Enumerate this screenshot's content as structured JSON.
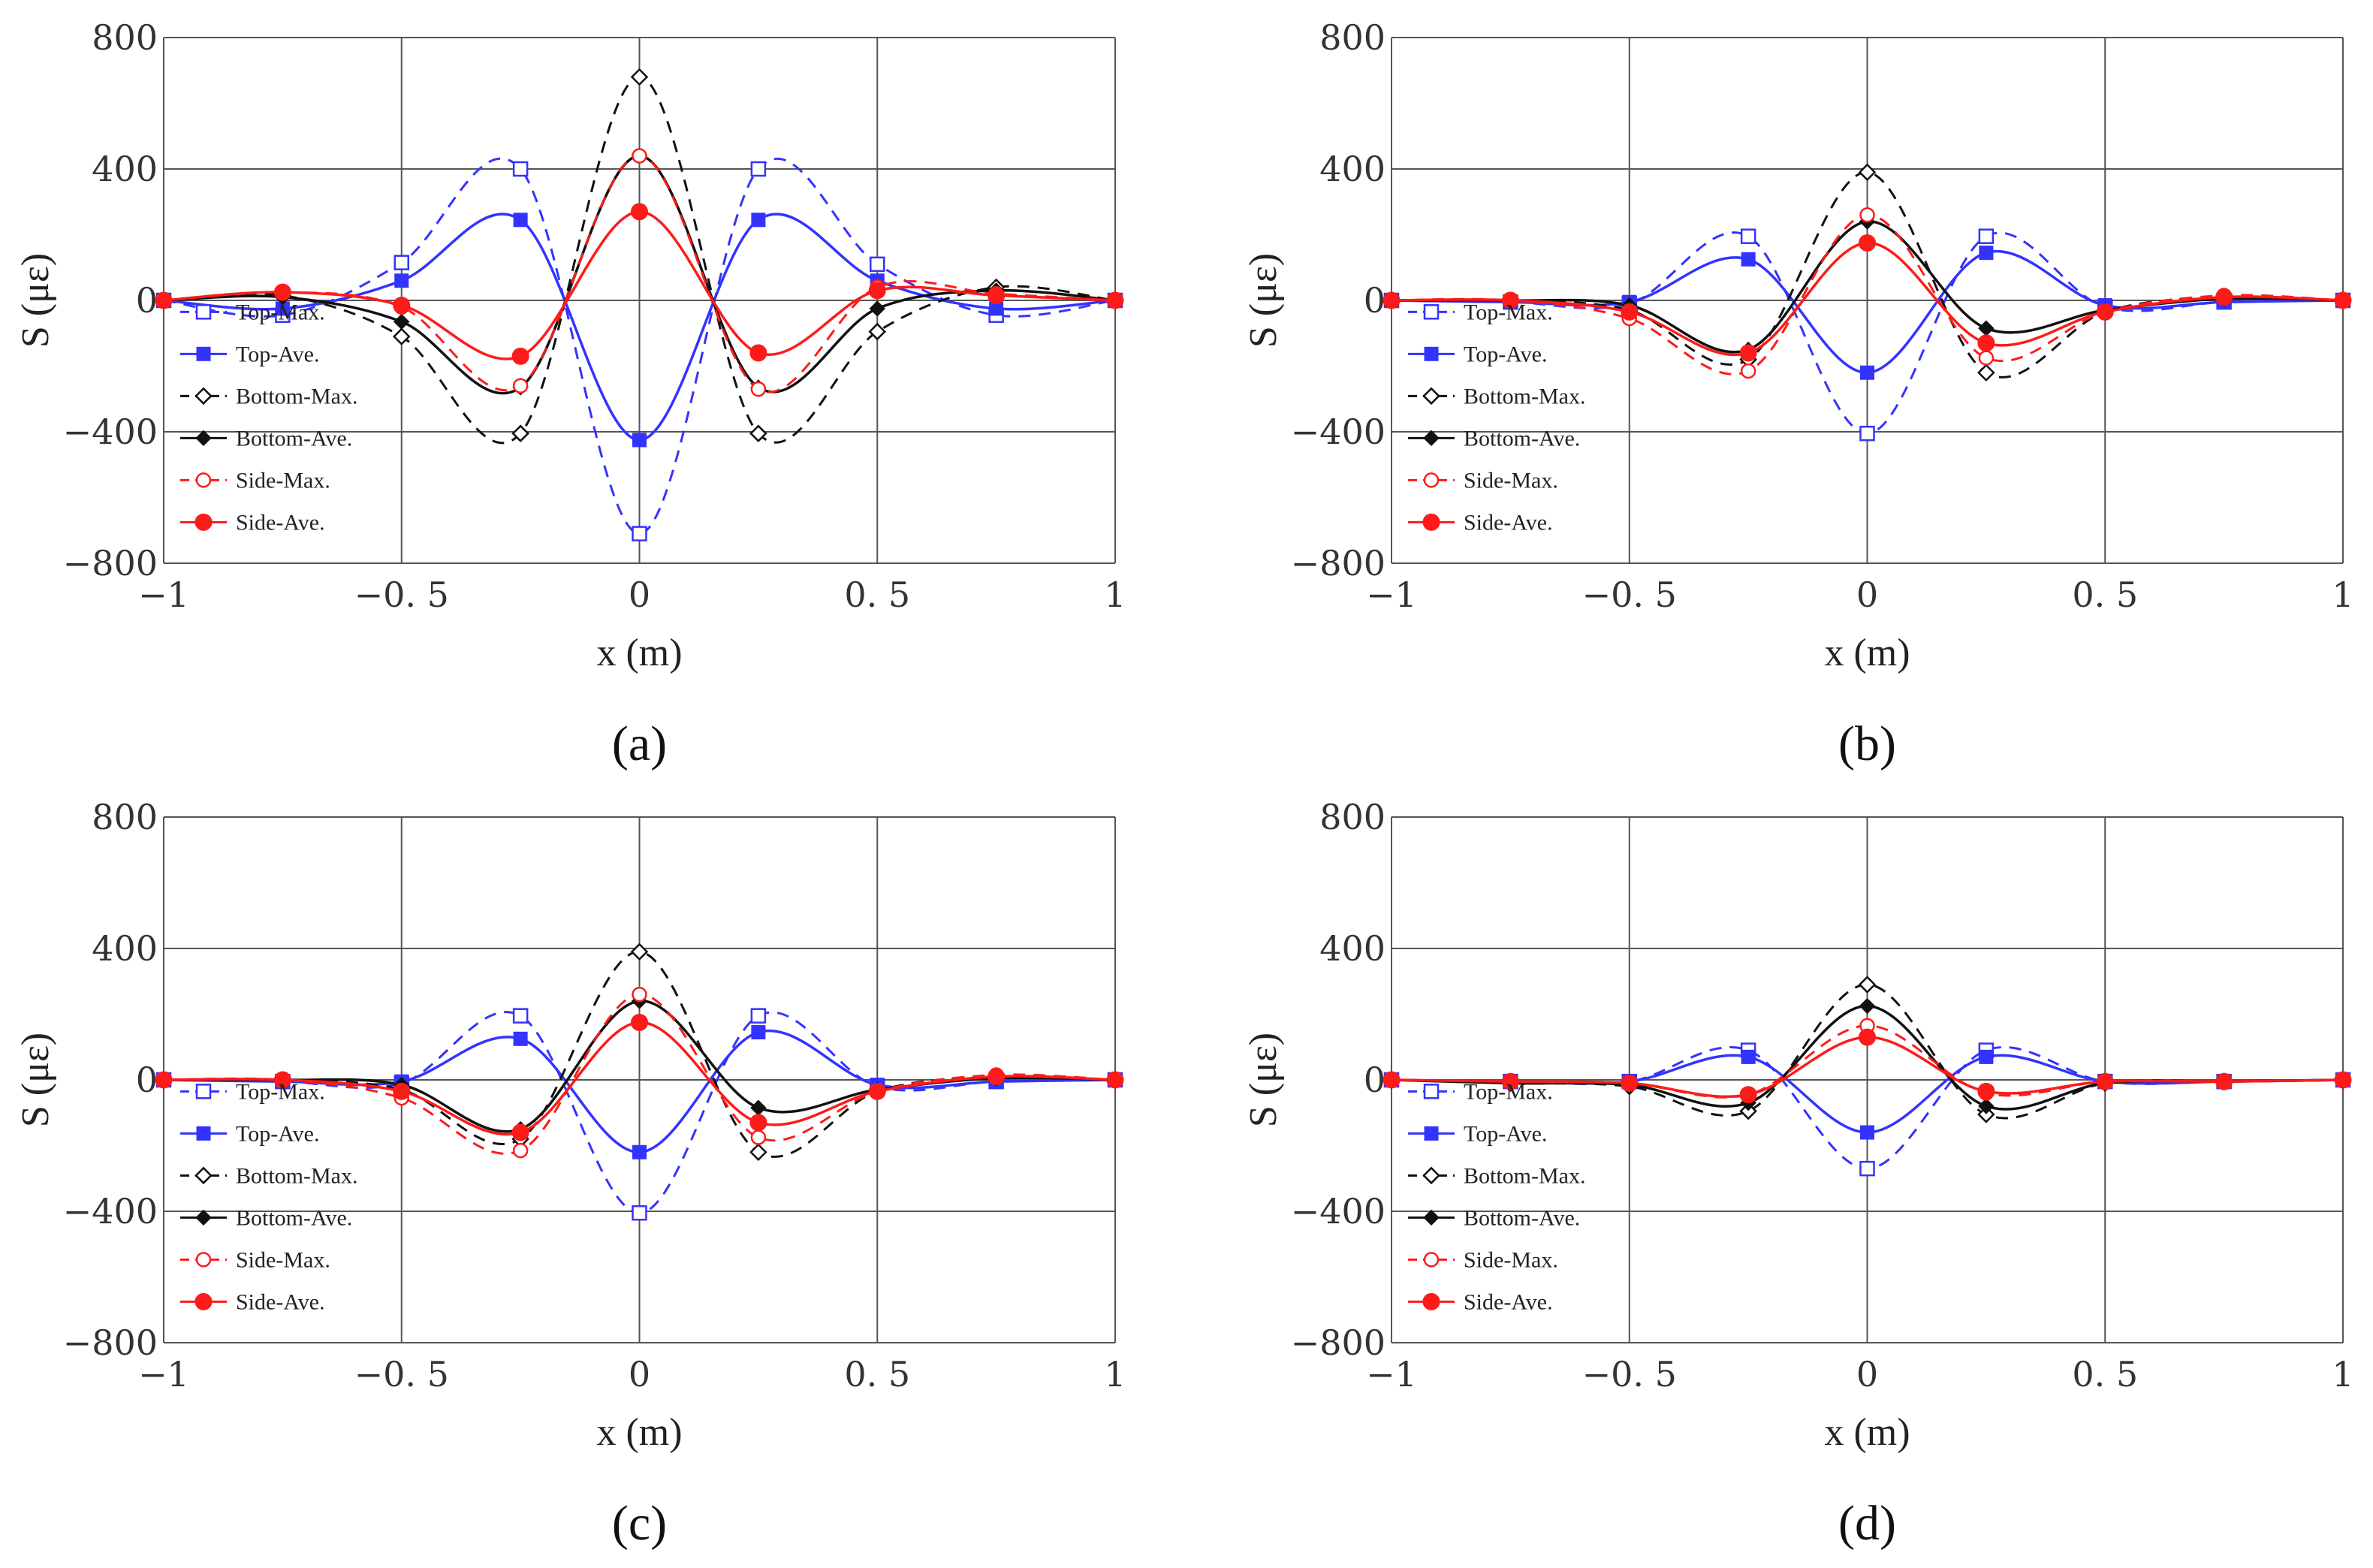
{
  "figure": {
    "colors": {
      "blue": "#3333ff",
      "black": "#111111",
      "red": "#ff1a1a",
      "grid": "#555555"
    }
  },
  "chart_data": [
    {
      "panel": "(a)",
      "type": "line",
      "xlabel": "x (m)",
      "ylabel": "S (με)",
      "xlim": [
        -1,
        1
      ],
      "ylim": [
        -800,
        800
      ],
      "xticks": [
        "−1",
        "−0. 5",
        "0",
        "0. 5",
        "1"
      ],
      "yticks": [
        "800",
        "400",
        "0",
        "−400",
        "−800"
      ],
      "legend_position": "left",
      "x": [
        -1,
        -0.75,
        -0.5,
        -0.25,
        0,
        0.25,
        0.5,
        0.75,
        1
      ],
      "series": [
        {
          "name": "Top-Max.",
          "color": "#3333ff",
          "dash": true,
          "marker": "open-square",
          "values": [
            0,
            -45,
            115,
            400,
            -710,
            400,
            110,
            -45,
            0
          ]
        },
        {
          "name": "Top-Ave.",
          "color": "#3333ff",
          "dash": false,
          "marker": "filled-square",
          "values": [
            0,
            -25,
            60,
            245,
            -425,
            245,
            60,
            -25,
            0
          ]
        },
        {
          "name": "Bottom-Max.",
          "color": "#111111",
          "dash": true,
          "marker": "open-diamond",
          "values": [
            0,
            15,
            -110,
            -405,
            680,
            -405,
            -95,
            40,
            0
          ]
        },
        {
          "name": "Bottom-Ave.",
          "color": "#111111",
          "dash": false,
          "marker": "filled-diamond",
          "values": [
            0,
            10,
            -65,
            -265,
            440,
            -265,
            -25,
            30,
            0
          ]
        },
        {
          "name": "Side-Max.",
          "color": "#ff1a1a",
          "dash": true,
          "marker": "open-circle",
          "values": [
            0,
            25,
            -20,
            -260,
            440,
            -270,
            40,
            20,
            0
          ]
        },
        {
          "name": "Side-Ave.",
          "color": "#ff1a1a",
          "dash": false,
          "marker": "filled-circle",
          "values": [
            0,
            25,
            -15,
            -170,
            270,
            -160,
            30,
            15,
            0
          ]
        }
      ]
    },
    {
      "panel": "(b)",
      "type": "line",
      "xlabel": "x (m)",
      "ylabel": "S (με)",
      "xlim": [
        -1,
        1
      ],
      "ylim": [
        -800,
        800
      ],
      "xticks": [
        "−1",
        "−0. 5",
        "0",
        "0. 5",
        "1"
      ],
      "yticks": [
        "800",
        "400",
        "0",
        "−400",
        "−800"
      ],
      "legend_position": "left",
      "x": [
        -1,
        -0.75,
        -0.5,
        -0.25,
        0,
        0.25,
        0.5,
        0.75,
        1
      ],
      "series": [
        {
          "name": "Top-Max.",
          "color": "#3333ff",
          "dash": true,
          "marker": "open-square",
          "values": [
            0,
            -5,
            -10,
            195,
            -405,
            195,
            -20,
            -5,
            0
          ]
        },
        {
          "name": "Top-Ave.",
          "color": "#3333ff",
          "dash": false,
          "marker": "filled-square",
          "values": [
            0,
            -5,
            -5,
            125,
            -220,
            145,
            -15,
            -5,
            0
          ]
        },
        {
          "name": "Bottom-Max.",
          "color": "#111111",
          "dash": true,
          "marker": "open-diamond",
          "values": [
            0,
            0,
            -30,
            -180,
            390,
            -220,
            -35,
            10,
            0
          ]
        },
        {
          "name": "Bottom-Ave.",
          "color": "#111111",
          "dash": false,
          "marker": "filled-diamond",
          "values": [
            0,
            0,
            -15,
            -150,
            240,
            -85,
            -30,
            5,
            0
          ]
        },
        {
          "name": "Side-Max.",
          "color": "#ff1a1a",
          "dash": true,
          "marker": "open-circle",
          "values": [
            0,
            0,
            -55,
            -215,
            260,
            -175,
            -35,
            15,
            0
          ]
        },
        {
          "name": "Side-Ave.",
          "color": "#ff1a1a",
          "dash": false,
          "marker": "filled-circle",
          "values": [
            0,
            0,
            -35,
            -160,
            175,
            -130,
            -35,
            10,
            0
          ]
        }
      ]
    },
    {
      "panel": "(c)",
      "type": "line",
      "xlabel": "x (m)",
      "ylabel": "S (με)",
      "xlim": [
        -1,
        1
      ],
      "ylim": [
        -800,
        800
      ],
      "xticks": [
        "−1",
        "−0. 5",
        "0",
        "0. 5",
        "1"
      ],
      "yticks": [
        "800",
        "400",
        "0",
        "−400",
        "−800"
      ],
      "legend_position": "left",
      "x": [
        -1,
        -0.75,
        -0.5,
        -0.25,
        0,
        0.25,
        0.5,
        0.75,
        1
      ],
      "series": [
        {
          "name": "Top-Max.",
          "color": "#3333ff",
          "dash": true,
          "marker": "open-square",
          "values": [
            0,
            -5,
            -10,
            195,
            -405,
            195,
            -20,
            -5,
            0
          ]
        },
        {
          "name": "Top-Ave.",
          "color": "#3333ff",
          "dash": false,
          "marker": "filled-square",
          "values": [
            0,
            -5,
            -5,
            125,
            -220,
            145,
            -15,
            -5,
            0
          ]
        },
        {
          "name": "Bottom-Max.",
          "color": "#111111",
          "dash": true,
          "marker": "open-diamond",
          "values": [
            0,
            0,
            -30,
            -180,
            390,
            -220,
            -35,
            10,
            0
          ]
        },
        {
          "name": "Bottom-Ave.",
          "color": "#111111",
          "dash": false,
          "marker": "filled-diamond",
          "values": [
            0,
            0,
            -15,
            -150,
            240,
            -85,
            -30,
            5,
            0
          ]
        },
        {
          "name": "Side-Max.",
          "color": "#ff1a1a",
          "dash": true,
          "marker": "open-circle",
          "values": [
            0,
            0,
            -55,
            -215,
            260,
            -175,
            -35,
            15,
            0
          ]
        },
        {
          "name": "Side-Ave.",
          "color": "#ff1a1a",
          "dash": false,
          "marker": "filled-circle",
          "values": [
            0,
            0,
            -35,
            -160,
            175,
            -130,
            -35,
            10,
            0
          ]
        }
      ]
    },
    {
      "panel": "(d)",
      "type": "line",
      "xlabel": "x (m)",
      "ylabel": "S (με)",
      "xlim": [
        -1,
        1
      ],
      "ylim": [
        -800,
        800
      ],
      "xticks": [
        "−1",
        "−0. 5",
        "0",
        "0. 5",
        "1"
      ],
      "yticks": [
        "800",
        "400",
        "0",
        "−400",
        "−800"
      ],
      "legend_position": "left",
      "x": [
        -1,
        -0.75,
        -0.5,
        -0.25,
        0,
        0.25,
        0.5,
        0.75,
        1
      ],
      "series": [
        {
          "name": "Top-Max.",
          "color": "#3333ff",
          "dash": true,
          "marker": "open-square",
          "values": [
            0,
            -5,
            -5,
            90,
            -270,
            90,
            -5,
            -5,
            0
          ]
        },
        {
          "name": "Top-Ave.",
          "color": "#3333ff",
          "dash": false,
          "marker": "filled-square",
          "values": [
            0,
            -5,
            -5,
            70,
            -160,
            70,
            -5,
            -5,
            0
          ]
        },
        {
          "name": "Bottom-Max.",
          "color": "#111111",
          "dash": true,
          "marker": "open-diamond",
          "values": [
            0,
            -10,
            -20,
            -95,
            290,
            -105,
            -10,
            -5,
            0
          ]
        },
        {
          "name": "Bottom-Ave.",
          "color": "#111111",
          "dash": false,
          "marker": "filled-diamond",
          "values": [
            0,
            -10,
            -15,
            -70,
            225,
            -80,
            -10,
            -5,
            0
          ]
        },
        {
          "name": "Side-Max.",
          "color": "#ff1a1a",
          "dash": true,
          "marker": "open-circle",
          "values": [
            0,
            -5,
            -10,
            -45,
            165,
            -40,
            -5,
            -5,
            0
          ]
        },
        {
          "name": "Side-Ave.",
          "color": "#ff1a1a",
          "dash": false,
          "marker": "filled-circle",
          "values": [
            0,
            -5,
            -10,
            -45,
            130,
            -35,
            -5,
            -5,
            0
          ]
        }
      ]
    }
  ]
}
